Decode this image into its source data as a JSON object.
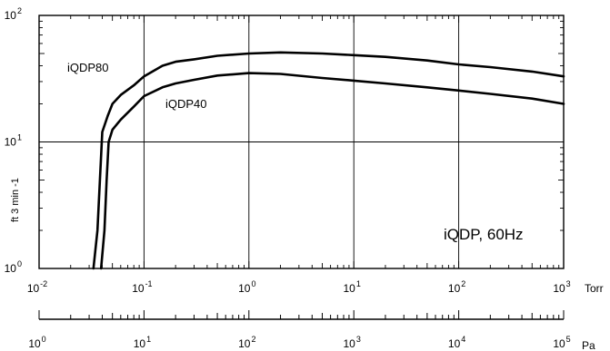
{
  "chart_data": {
    "type": "line",
    "title": "",
    "annotation": "iQDP, 60Hz",
    "ylabel": "ft 3 min -1",
    "x_unit_primary": "Torr",
    "x_unit_secondary": "Pa",
    "x_scale": "log",
    "y_scale": "log",
    "xlim": [
      0.01,
      1000
    ],
    "ylim": [
      1,
      100
    ],
    "grid": true,
    "x_ticks": [
      {
        "base": "10",
        "exp": "-2"
      },
      {
        "base": "10",
        "exp": "-1"
      },
      {
        "base": "10",
        "exp": "0"
      },
      {
        "base": "10",
        "exp": "1"
      },
      {
        "base": "10",
        "exp": "2"
      },
      {
        "base": "10",
        "exp": "3"
      }
    ],
    "y_ticks": [
      {
        "base": "10",
        "exp": "0"
      },
      {
        "base": "10",
        "exp": "1"
      },
      {
        "base": "10",
        "exp": "2"
      }
    ],
    "pa_ticks": [
      {
        "base": "10",
        "exp": "0"
      },
      {
        "base": "10",
        "exp": "1"
      },
      {
        "base": "10",
        "exp": "2"
      },
      {
        "base": "10",
        "exp": "3"
      },
      {
        "base": "10",
        "exp": "4"
      },
      {
        "base": "10",
        "exp": "5"
      }
    ],
    "pa_range": [
      1,
      100000
    ],
    "series": [
      {
        "name": "iQDP80",
        "x": [
          0.033,
          0.036,
          0.038,
          0.04,
          0.045,
          0.05,
          0.06,
          0.08,
          0.1,
          0.15,
          0.2,
          0.3,
          0.5,
          1,
          2,
          5,
          10,
          20,
          50,
          100,
          200,
          500,
          1000
        ],
        "y": [
          1,
          2,
          5,
          12,
          16,
          20,
          23.5,
          28,
          33,
          40,
          43,
          45,
          48,
          50,
          51,
          50,
          48.5,
          47,
          44,
          41,
          39,
          36,
          33
        ]
      },
      {
        "name": "iQDP40",
        "x": [
          0.039,
          0.042,
          0.044,
          0.046,
          0.05,
          0.06,
          0.08,
          0.1,
          0.15,
          0.2,
          0.3,
          0.5,
          1,
          2,
          5,
          10,
          20,
          50,
          100,
          200,
          500,
          1000
        ],
        "y": [
          1,
          2,
          5,
          10,
          12.5,
          15,
          19,
          23,
          27,
          29,
          31,
          33.5,
          35,
          34.5,
          32,
          30.5,
          29,
          27,
          25.5,
          24,
          22,
          20
        ]
      }
    ]
  }
}
